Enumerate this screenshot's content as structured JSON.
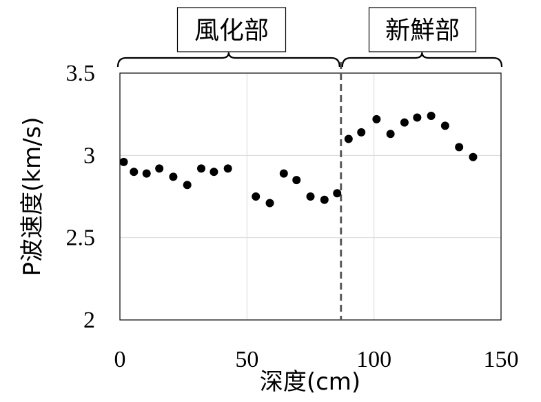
{
  "chart_data": {
    "type": "scatter",
    "title": "",
    "xlabel": "深度(cm)",
    "ylabel": "P波速度(km/s)",
    "xlim": [
      0,
      150
    ],
    "ylim": [
      2,
      3.5
    ],
    "x_ticks": [
      "0",
      "50",
      "100",
      "150"
    ],
    "y_ticks": [
      "2",
      "2.5",
      "3",
      "3.5"
    ],
    "grid": true,
    "boundary_depth": 87,
    "zones": [
      {
        "label": "風化部",
        "x_from": 0,
        "x_to": 87
      },
      {
        "label": "新鮮部",
        "x_from": 87,
        "x_to": 150
      }
    ],
    "series": [
      {
        "x": [
          1.5,
          5.5,
          10.5,
          15.5,
          21,
          26.5,
          32,
          37,
          42.5,
          53.5,
          59,
          64.5,
          69.5,
          75,
          80.5,
          85.5,
          90,
          95,
          101,
          106.5,
          112,
          117,
          122.5,
          128,
          133.5,
          139
        ],
        "y": [
          2.96,
          2.9,
          2.89,
          2.92,
          2.87,
          2.82,
          2.92,
          2.9,
          2.92,
          2.75,
          2.71,
          2.89,
          2.85,
          2.75,
          2.73,
          2.77,
          3.1,
          3.14,
          3.22,
          3.13,
          3.2,
          3.23,
          3.24,
          3.18,
          3.05,
          2.99
        ]
      }
    ],
    "colors": {
      "marker": "#000000",
      "grid": "#d9d9d9",
      "boundary": "#595959"
    }
  }
}
